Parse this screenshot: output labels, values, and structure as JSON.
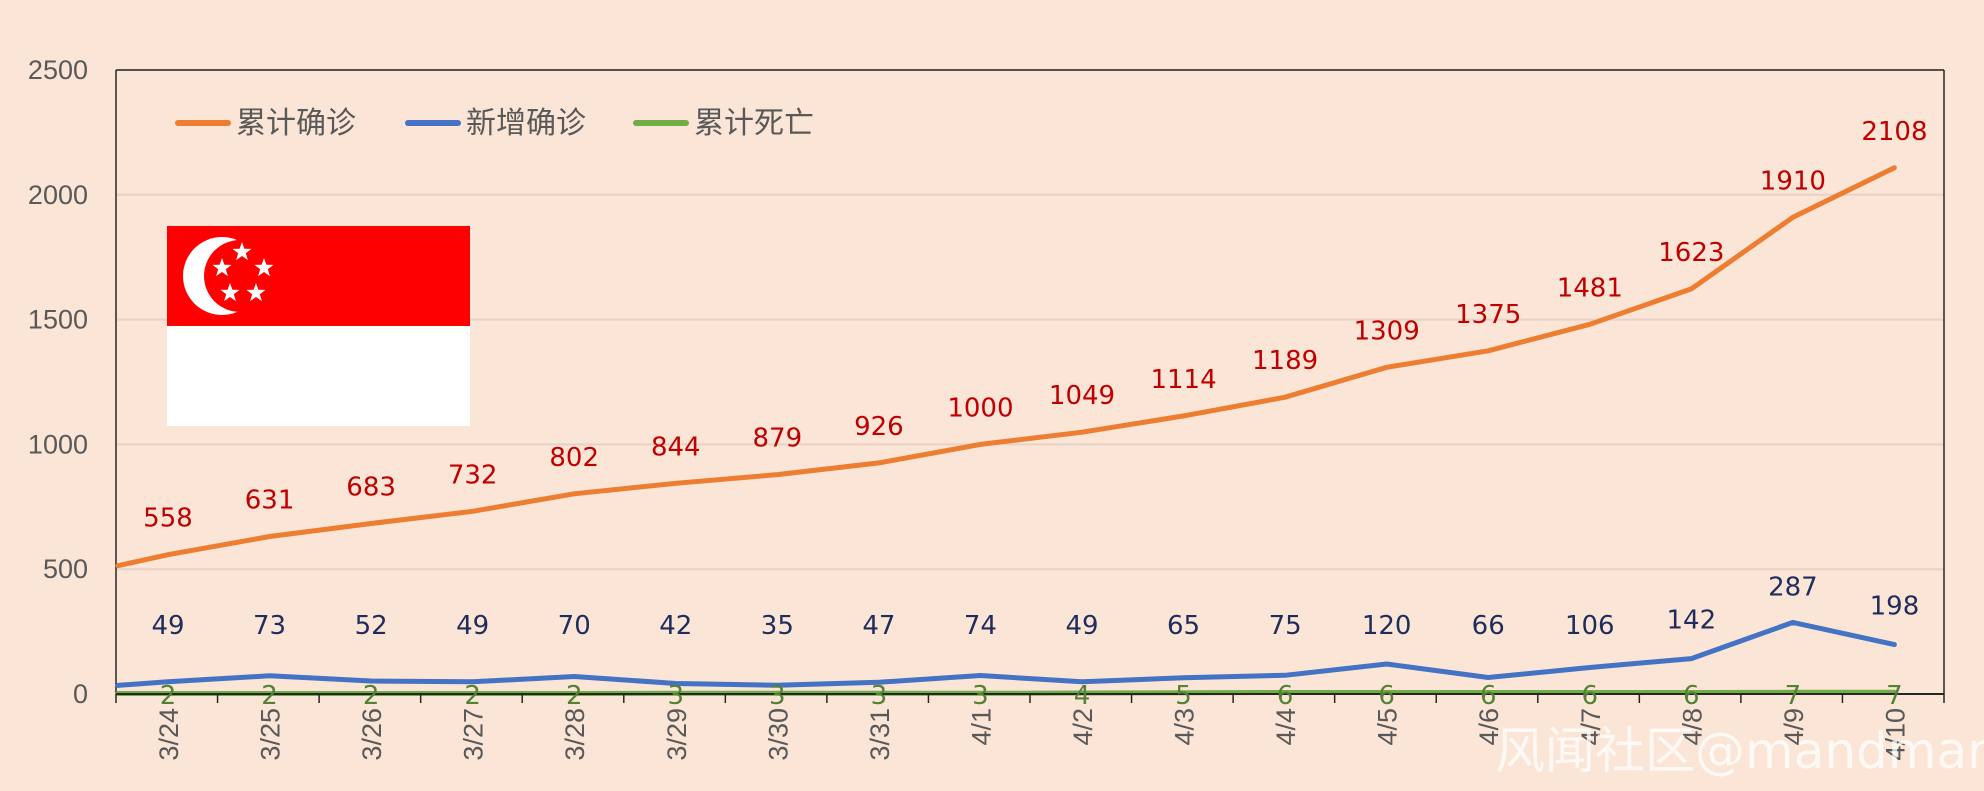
{
  "chart_data": {
    "type": "line",
    "categories": [
      "3/24",
      "3/25",
      "3/26",
      "3/27",
      "3/28",
      "3/29",
      "3/30",
      "3/31",
      "4/1",
      "4/2",
      "4/3",
      "4/4",
      "4/5",
      "4/6",
      "4/7",
      "4/8",
      "4/9",
      "4/10"
    ],
    "series": [
      {
        "name": "累计确诊",
        "color": "#ED7D31",
        "label_color": "#C00000",
        "values": [
          558,
          631,
          683,
          732,
          802,
          844,
          879,
          926,
          1000,
          1049,
          1114,
          1189,
          1309,
          1375,
          1481,
          1623,
          1910,
          2108
        ]
      },
      {
        "name": "新增确诊",
        "color": "#4472C4",
        "label_color": "#1F2D5C",
        "values": [
          49,
          73,
          52,
          49,
          70,
          42,
          35,
          47,
          74,
          49,
          65,
          75,
          120,
          66,
          106,
          142,
          287,
          198
        ]
      },
      {
        "name": "累计死亡",
        "color": "#70AD47",
        "label_color": "#548235",
        "values": [
          2,
          2,
          2,
          2,
          2,
          3,
          3,
          3,
          3,
          4,
          5,
          6,
          6,
          6,
          6,
          6,
          7,
          7
        ]
      }
    ],
    "ylim": [
      0,
      2500
    ],
    "yticks": [
      0,
      500,
      1000,
      1500,
      2000,
      2500
    ],
    "grid": true,
    "legend_position": "top-left",
    "flag_icon": "singapore-flag-icon",
    "watermark": "风闻社区@mandman"
  }
}
